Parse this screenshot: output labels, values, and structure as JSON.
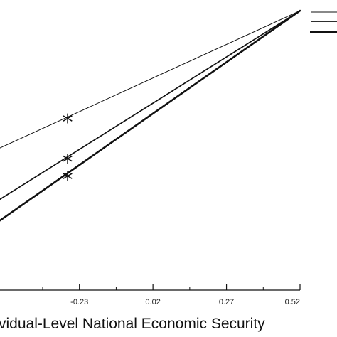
{
  "chart_data": {
    "type": "line",
    "xlabel": "vidual-Level National Economic Security",
    "x_ticks": [
      -0.23,
      0.02,
      0.27,
      0.52
    ],
    "x_tick_labels": [
      "-0.23",
      "0.02",
      "0.27",
      "0.52"
    ],
    "xlim": [
      -0.5,
      0.52
    ],
    "ylim": [
      0,
      1
    ],
    "grid": false,
    "series": [
      {
        "x": [
          -0.5,
          0.52
        ],
        "y": [
          0.49,
          0.963
        ],
        "significance_marker": "*",
        "marker_x": -0.27,
        "marker_y": 0.588
      },
      {
        "x": [
          -0.5,
          0.52
        ],
        "y": [
          0.313,
          0.963
        ],
        "significance_marker": "*",
        "marker_x": -0.27,
        "marker_y": 0.45
      },
      {
        "x": [
          -0.5,
          0.52
        ],
        "y": [
          0.24,
          0.963
        ],
        "significance_marker": "*",
        "marker_x": -0.27,
        "marker_y": 0.39
      }
    ]
  }
}
